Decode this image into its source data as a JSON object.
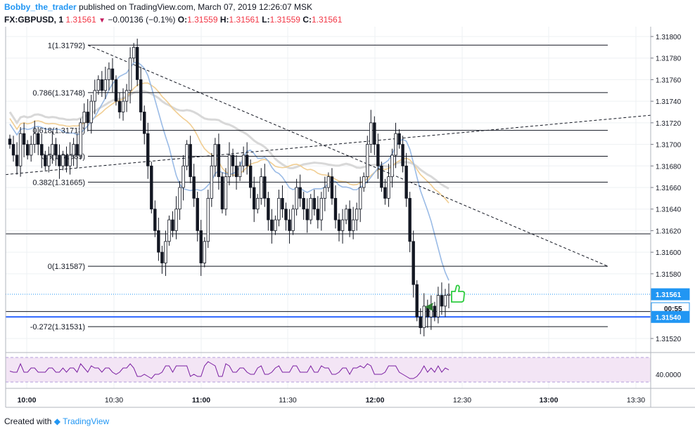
{
  "header": {
    "author": "Bobby_the_trader",
    "published_text": "published on TradingView.com, March 07, 2019 12:26:07 MSK"
  },
  "symbol_line": {
    "symbol": "FX:GBPUSD, 1",
    "last": "1.31561",
    "change": "−0.00136 (−0.1%)",
    "o_label": "O:",
    "o": "1.31559",
    "h_label": "H:",
    "h": "1.31561",
    "l_label": "L:",
    "l": "1.31559",
    "c_label": "C:",
    "c": "1.31561"
  },
  "chart_data": [
    {
      "type": "candlestick",
      "symbol": "FX:GBPUSD",
      "interval": "1",
      "ylim": [
        1.3151,
        1.3181
      ],
      "y_ticks": [
        "1.31800",
        "1.31780",
        "1.31760",
        "1.31740",
        "1.31720",
        "1.31700",
        "1.31680",
        "1.31660",
        "1.31640",
        "1.31620",
        "1.31600",
        "1.31580",
        "1.31520"
      ],
      "x_ticks": [
        "10:00",
        "10:30",
        "11:00",
        "11:30",
        "12:00",
        "12:30",
        "13:00",
        "13:30"
      ],
      "price_labels": [
        {
          "text": "1.31561",
          "color": "#2196f3"
        },
        {
          "text": "00:55",
          "color": "#2196f3"
        },
        {
          "text": "1.31540",
          "color": "#2196f3"
        }
      ],
      "fib_levels": [
        {
          "label": "1(1.31792)",
          "price": 1.31792
        },
        {
          "label": "0.786(1.31748)",
          "price": 1.31748
        },
        {
          "label": "0.618(1.31713)",
          "price": 1.31713
        },
        {
          "label": "0.5(1.31689)",
          "price": 1.31689
        },
        {
          "label": "0.382(1.31665)",
          "price": 1.31665
        },
        {
          "label": "0(1.31587)",
          "price": 1.31587
        },
        {
          "label": "-0.272(1.31531)",
          "price": 1.31531
        }
      ],
      "horizontal_lines": [
        1.31617,
        1.31545,
        1.3154
      ],
      "closes": [
        1.317,
        1.3169,
        1.3168,
        1.3171,
        1.317,
        1.3169,
        1.317,
        1.3171,
        1.317,
        1.3169,
        1.3168,
        1.3169,
        1.317,
        1.3169,
        1.3168,
        1.3169,
        1.3168,
        1.3169,
        1.317,
        1.3169,
        1.3172,
        1.3173,
        1.3172,
        1.3174,
        1.3175,
        1.3176,
        1.3175,
        1.3176,
        1.3177,
        1.3176,
        1.3174,
        1.3173,
        1.3174,
        1.3175,
        1.3178,
        1.3179,
        1.3176,
        1.3173,
        1.3171,
        1.3168,
        1.3164,
        1.3162,
        1.316,
        1.3159,
        1.3161,
        1.3163,
        1.3162,
        1.3164,
        1.3166,
        1.3168,
        1.317,
        1.3167,
        1.3165,
        1.3162,
        1.3159,
        1.3161,
        1.3165,
        1.3168,
        1.317,
        1.3167,
        1.3164,
        1.3167,
        1.3169,
        1.3168,
        1.3167,
        1.3168,
        1.3169,
        1.3168,
        1.3166,
        1.3164,
        1.3165,
        1.3167,
        1.3165,
        1.3163,
        1.3162,
        1.3163,
        1.3165,
        1.3164,
        1.3163,
        1.3162,
        1.3164,
        1.3166,
        1.3165,
        1.3164,
        1.3163,
        1.3165,
        1.3164,
        1.3163,
        1.3165,
        1.3166,
        1.3167,
        1.3165,
        1.3163,
        1.3162,
        1.3163,
        1.3164,
        1.3162,
        1.3163,
        1.3164,
        1.3166,
        1.3167,
        1.317,
        1.3172,
        1.317,
        1.3168,
        1.3166,
        1.3165,
        1.3167,
        1.3169,
        1.3171,
        1.317,
        1.3168,
        1.3165,
        1.3161,
        1.3157,
        1.3154,
        1.3153,
        1.3155,
        1.3154,
        1.3155,
        1.3154,
        1.3156,
        1.3155,
        1.3156,
        1.31561
      ],
      "rsi": {
        "level_label": "40.0000"
      }
    }
  ],
  "footer": {
    "created_with": "Created with",
    "brand": "TradingView"
  },
  "colors": {
    "candle_up": "#ffffff",
    "candle_down": "#131722",
    "ma_fast": "#8fb4e3",
    "ma_mid": "#f0c987",
    "ma_slow": "#d4d4d4",
    "rsi_line": "#7b1fa2",
    "rsi_band": "#f3e5f5",
    "accent": "#2196f3"
  }
}
